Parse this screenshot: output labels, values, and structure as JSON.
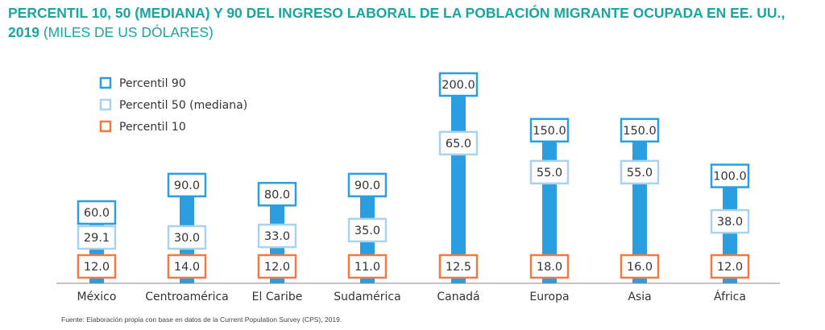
{
  "title": {
    "bold": "PERCENTIL 10, 50 (MEDIANA) Y 90 DEL INGRESO LABORAL DE LA POBLACIÓN MIGRANTE OCUPADA EN EE. UU., 2019",
    "unit": "(MILES DE US DÓLARES)"
  },
  "source": "Fuente: Elaboración propia con base en datos de la Current Population Survey (CPS), 2019.",
  "colors": {
    "bar": "#2b9ee0",
    "p90_border": "#2b9ee0",
    "p50_border": "#a9d2ef",
    "p10_border": "#f07a3f",
    "axis": "#888888",
    "title": "#1aa5a0"
  },
  "chart_data": {
    "type": "range-bar",
    "categories": [
      "México",
      "Centroamérica",
      "El Caribe",
      "Sudamérica",
      "Canadá",
      "Europa",
      "Asia",
      "África"
    ],
    "series": [
      {
        "name": "Percentil 90",
        "values": [
          "60.0",
          "90.0",
          "80.0",
          "90.0",
          "200.0",
          "150.0",
          "150.0",
          "100.0"
        ]
      },
      {
        "name": "Percentil 50 (mediana)",
        "values": [
          "29.1",
          "30.0",
          "33.0",
          "35.0",
          "65.0",
          "55.0",
          "55.0",
          "38.0"
        ]
      },
      {
        "name": "Percentil 10",
        "values": [
          "12.0",
          "14.0",
          "12.0",
          "11.0",
          "12.5",
          "18.0",
          "16.0",
          "12.0"
        ]
      }
    ],
    "legend_position": "top-left",
    "grid": false
  }
}
